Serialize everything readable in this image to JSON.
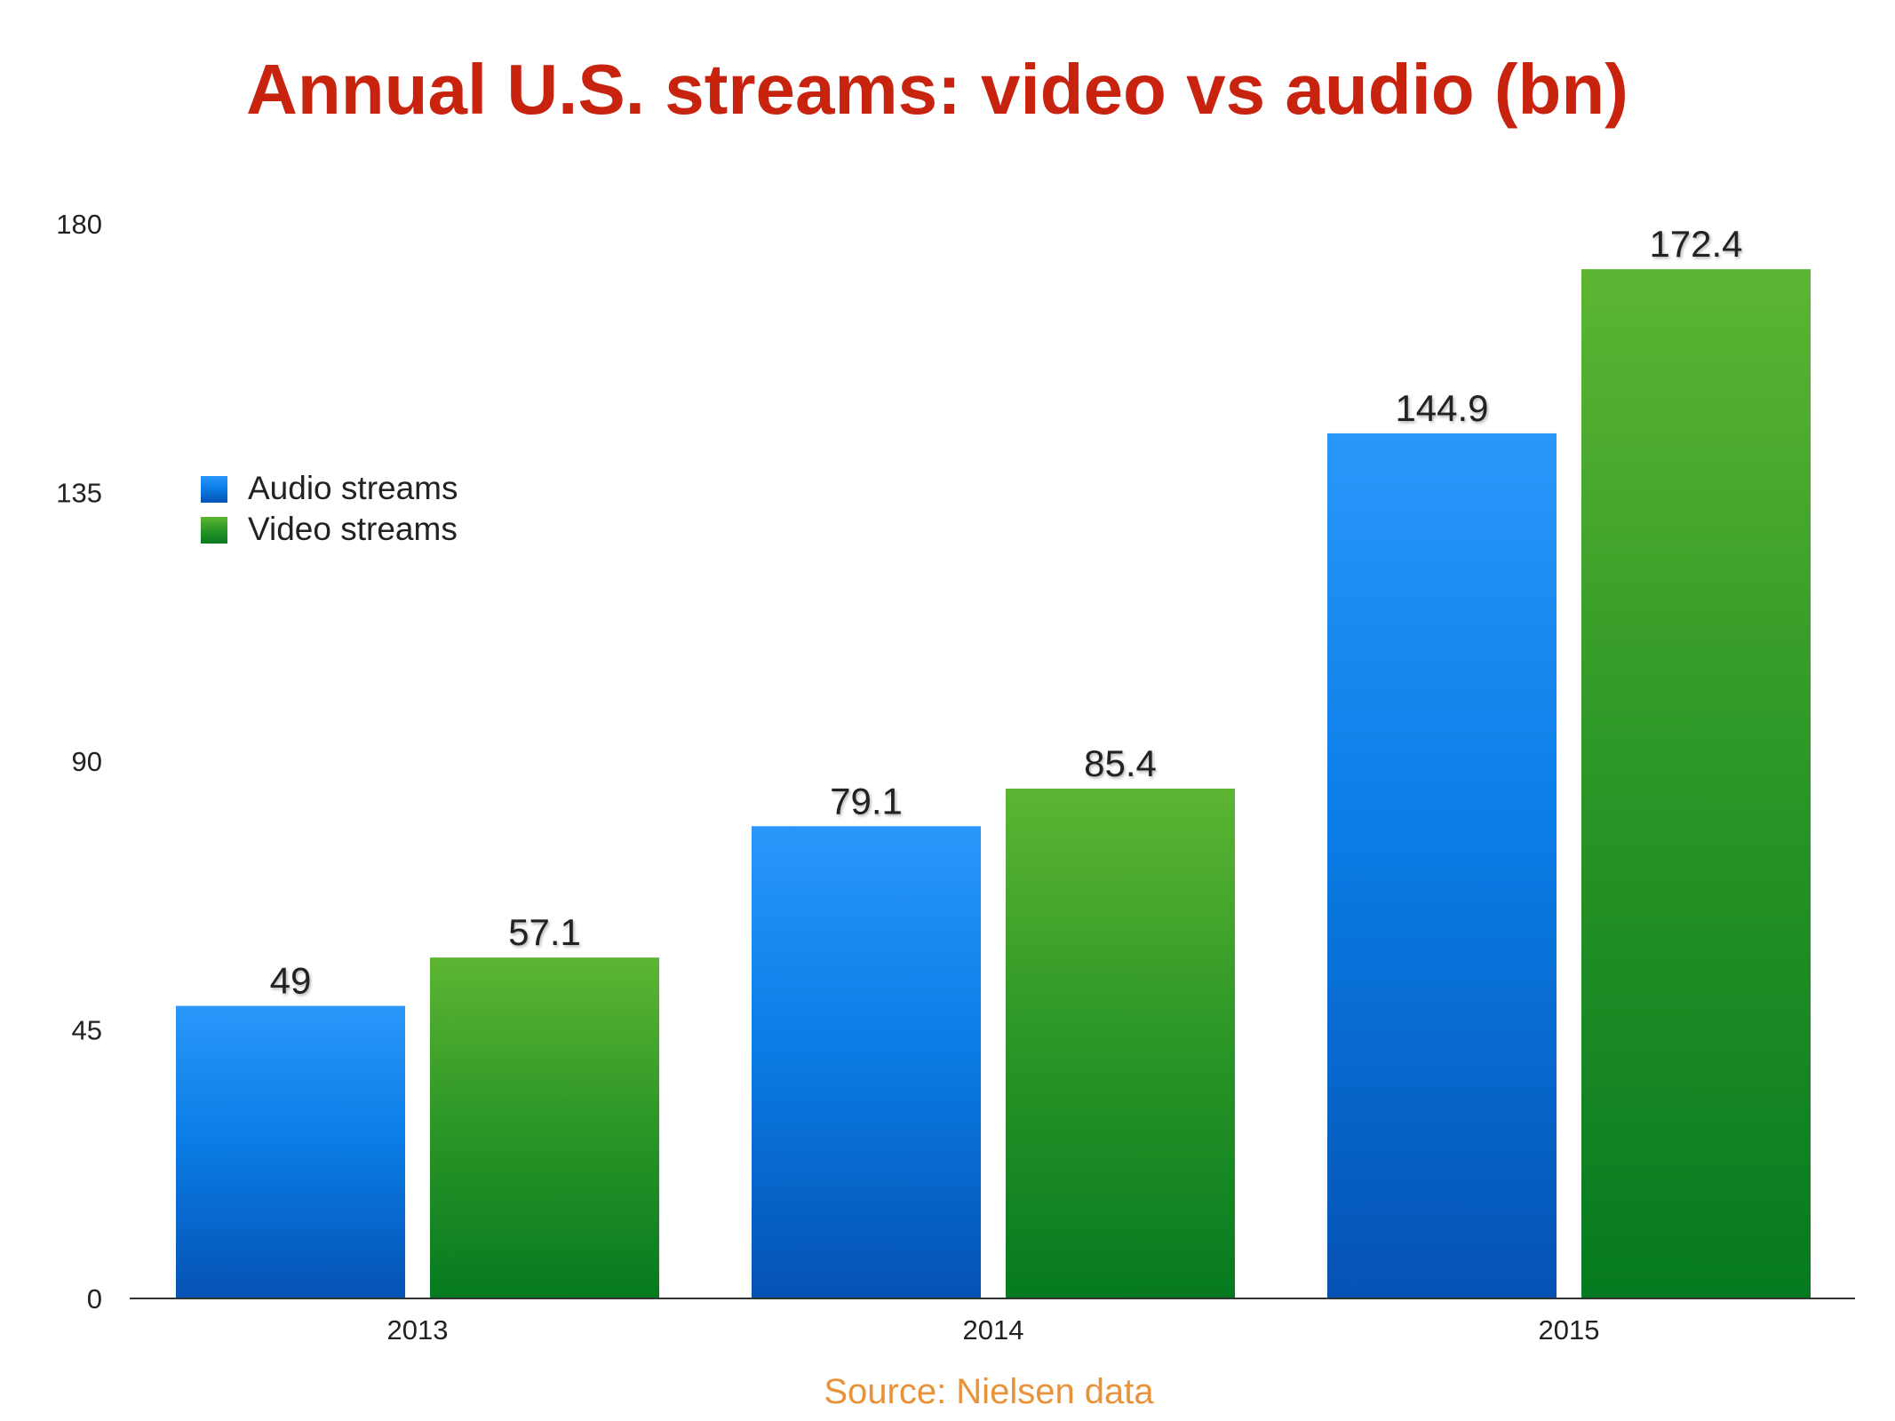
{
  "chart_data": {
    "type": "bar",
    "title": "Annual U.S. streams: video vs audio (bn)",
    "categories": [
      "2013",
      "2014",
      "2015"
    ],
    "series": [
      {
        "name": "Audio streams",
        "values": [
          49,
          79.1,
          144.9
        ],
        "value_labels": [
          "49",
          "79.1",
          "144.9"
        ],
        "color": "#1a7fe6"
      },
      {
        "name": "Video streams",
        "values": [
          57.1,
          85.4,
          172.4
        ],
        "value_labels": [
          "57.1",
          "85.4",
          "172.4"
        ],
        "color": "#2a9a2a"
      }
    ],
    "ylim": [
      0,
      180
    ],
    "yticks": [
      "0",
      "45",
      "90",
      "135",
      "180"
    ],
    "grid": false,
    "legend": "left",
    "source": "Source: Nielsen data"
  }
}
